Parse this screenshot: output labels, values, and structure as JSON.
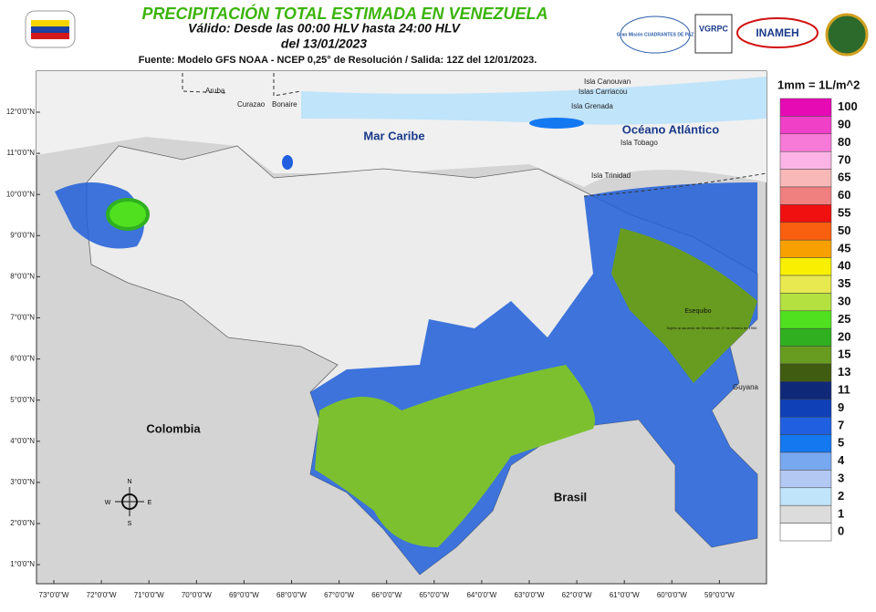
{
  "header": {
    "title": "PRECIPITACIÓN TOTAL ESTIMADA EN VENEZUELA",
    "valid": "Válido: Desde las 00:00 HLV hasta 24:00 HLV",
    "date": "del 13/01/2023",
    "source": "Fuente: Modelo GFS NOAA - NCEP 0,25° de Resolución / Salida: 12Z del 12/01/2023."
  },
  "logos": {
    "cuadrantes": "Gran Misión CUADRANTES DE PAZ",
    "vgrpc": "VGRPC",
    "inameh": "INAMEH"
  },
  "map": {
    "labels": {
      "aruba": "Aruba",
      "curazao": "Curazao",
      "bonaire": "Bonaire",
      "mar_caribe": "Mar Caribe",
      "canouvan": "Isla Canouvan",
      "carriacou": "Islas Carriacou",
      "grenada": "Isla Grenada",
      "oceano": "Océano Atlántico",
      "tobago": "Isla Tobago",
      "trinidad": "Isla Trinidad",
      "esequibo": "Esequibo",
      "ginebra": "Sujeto al acuerdo de Ginebra del 17 de febrero de 1966",
      "colombia": "Colombia",
      "brasil": "Brasil",
      "guyana": "Guyana"
    },
    "compass": {
      "n": "N",
      "s": "S",
      "e": "E",
      "w": "W"
    },
    "lat_ticks": [
      "12°0'0\"N",
      "11°0'0\"N",
      "10°0'0\"N",
      "9°0'0\"N",
      "8°0'0\"N",
      "7°0'0\"N",
      "6°0'0\"N",
      "5°0'0\"N",
      "4°0'0\"N",
      "3°0'0\"N",
      "2°0'0\"N",
      "1°0'0\"N"
    ],
    "lon_ticks": [
      "73°0'0\"W",
      "72°0'0\"W",
      "71°0'0\"W",
      "70°0'0\"W",
      "69°0'0\"W",
      "68°0'0\"W",
      "67°0'0\"W",
      "66°0'0\"W",
      "65°0'0\"W",
      "64°0'0\"W",
      "63°0'0\"W",
      "62°0'0\"W",
      "61°0'0\"W",
      "60°0'0\"W",
      "59°0'0\"W"
    ]
  },
  "legend": {
    "title": "1mm = 1L/m^2",
    "levels": [
      {
        "label": "100",
        "color": "#e60ab4"
      },
      {
        "label": "90",
        "color": "#f040c8"
      },
      {
        "label": "80",
        "color": "#f87ad8"
      },
      {
        "label": "70",
        "color": "#fcb4e6"
      },
      {
        "label": "65",
        "color": "#f8b8b8"
      },
      {
        "label": "60",
        "color": "#f08080"
      },
      {
        "label": "55",
        "color": "#f01010"
      },
      {
        "label": "50",
        "color": "#f86010"
      },
      {
        "label": "45",
        "color": "#f8a000"
      },
      {
        "label": "40",
        "color": "#f8f000"
      },
      {
        "label": "35",
        "color": "#e8e850"
      },
      {
        "label": "30",
        "color": "#b4e040"
      },
      {
        "label": "25",
        "color": "#50e020"
      },
      {
        "label": "20",
        "color": "#30b020"
      },
      {
        "label": "15",
        "color": "#689c20"
      },
      {
        "label": "13",
        "color": "#405c10"
      },
      {
        "label": "11",
        "color": "#102878"
      },
      {
        "label": "9",
        "color": "#1040b8"
      },
      {
        "label": "7",
        "color": "#2060e0"
      },
      {
        "label": "5",
        "color": "#1478f0"
      },
      {
        "label": "4",
        "color": "#78a8f0"
      },
      {
        "label": "3",
        "color": "#b4c8f4"
      },
      {
        "label": "2",
        "color": "#c0e4fa"
      },
      {
        "label": "1",
        "color": "#dcdcdc"
      },
      {
        "label": "0",
        "color": "#ffffff"
      }
    ]
  }
}
